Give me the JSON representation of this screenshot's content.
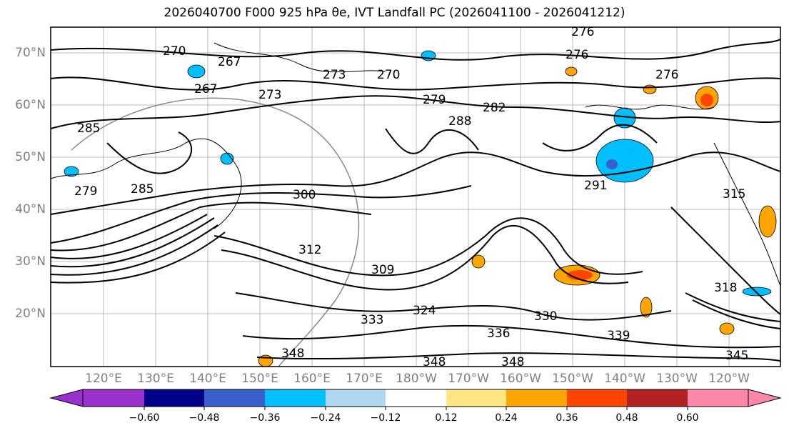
{
  "title": "2026040700 F000 925 hPa θe, IVT Landfall PC (2026041100 - 2026041212)",
  "lat_labels": [
    "70°N",
    "60°N",
    "50°N",
    "40°N",
    "30°N",
    "20°N"
  ],
  "lon_labels": [
    "120°E",
    "130°E",
    "140°E",
    "150°E",
    "160°E",
    "170°E",
    "180°W",
    "170°W",
    "160°W",
    "150°W",
    "140°W",
    "130°W",
    "120°W"
  ],
  "contour_labels": [
    "276",
    "276",
    "270",
    "267",
    "273",
    "267",
    "270",
    "273",
    "276",
    "279",
    "282",
    "288",
    "285",
    "285",
    "279",
    "300",
    "291",
    "315",
    "309",
    "312",
    "333",
    "324",
    "330",
    "339",
    "336",
    "348",
    "348",
    "348",
    "345",
    "318"
  ],
  "colorbar": {
    "ticks": [
      "−0.60",
      "−0.48",
      "−0.36",
      "−0.24",
      "−0.12",
      "0.12",
      "0.24",
      "0.36",
      "0.48",
      "0.60"
    ],
    "colors": [
      "#9932cc",
      "#00008b",
      "#3a5fcd",
      "#00bfff",
      "#add8f0",
      "#ffffff",
      "#ffe680",
      "#ffa500",
      "#ff4500",
      "#b22222",
      "#ff88aa"
    ]
  }
}
